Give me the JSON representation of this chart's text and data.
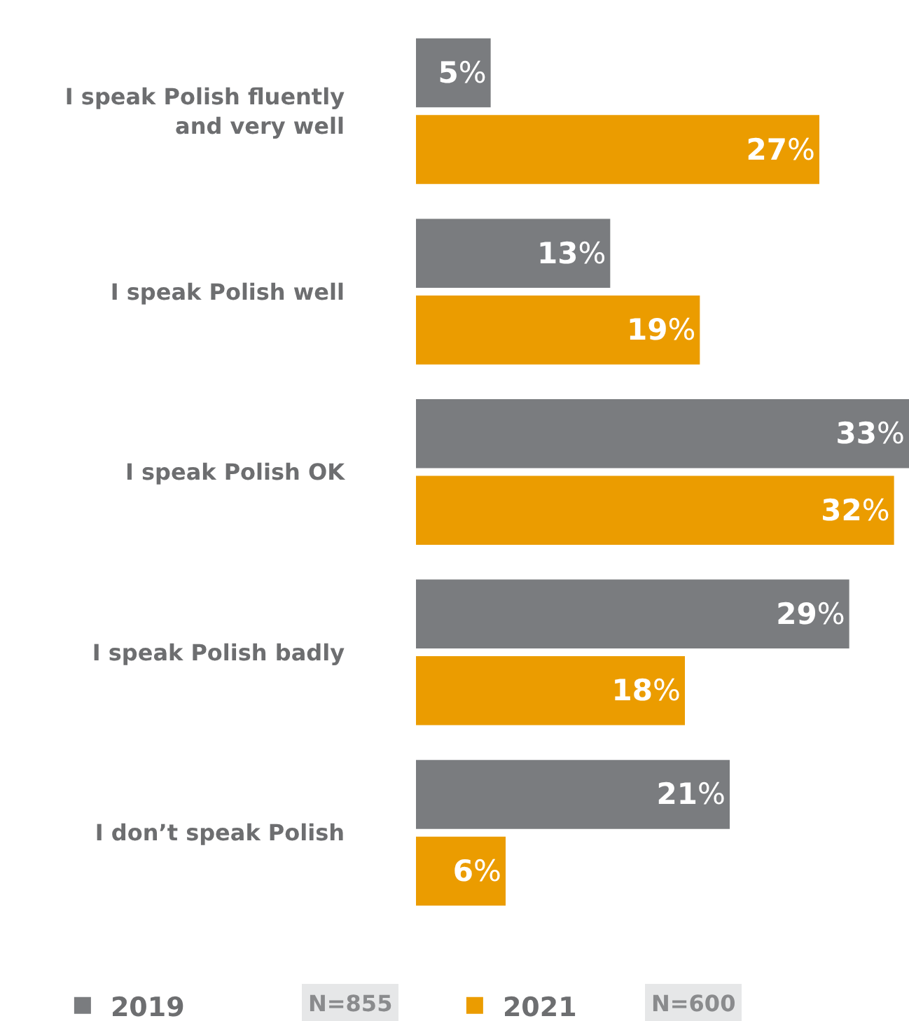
{
  "chart_data": {
    "type": "bar",
    "orientation": "horizontal",
    "categories": [
      "I speak Polish fluently\nand very well",
      "I speak Polish well",
      "I speak Polish OK",
      "I speak Polish badly",
      "I don’t speak Polish"
    ],
    "series": [
      {
        "name": "2019",
        "color": "#7a7c7f",
        "values": [
          5,
          13,
          33,
          29,
          21
        ],
        "value_labels": [
          "5%",
          "13%",
          "33%",
          "29%",
          "21%"
        ]
      },
      {
        "name": "2021",
        "color": "#eb9c00",
        "values": [
          27,
          19,
          32,
          18,
          6
        ],
        "value_labels": [
          "27%",
          "19%",
          "32%",
          "18%",
          "6%"
        ]
      }
    ],
    "xlim": [
      0,
      33
    ],
    "tick_labels": "y",
    "grid": false,
    "legend": "bottom",
    "annotations": [
      "N=855",
      "N=600"
    ]
  }
}
